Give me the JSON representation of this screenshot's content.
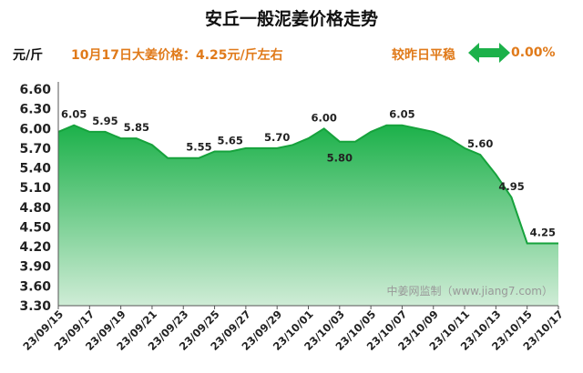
{
  "title": "安丘一般泥姜价格走势",
  "unit": "元/斤",
  "price_note": "10月17日大姜价格：4.25元/斤左右",
  "compare_label": "较昨日平稳",
  "change": "0.00%",
  "watermark": "中姜网监制（www.jiang7.com）",
  "colors": {
    "fill_top": "#1cb14a",
    "fill_bottom": "#cfecd6",
    "line": "#16a23c",
    "accent": "#e07a1a",
    "arrow": "#1cb14a"
  },
  "icons": {
    "compare": "double-arrow-icon"
  },
  "chart_data": {
    "type": "area",
    "title": "安丘一般泥姜价格走势",
    "ylabel": "元/斤",
    "xlabel": "",
    "ylim": [
      3.3,
      6.6
    ],
    "yticks": [
      "6.60",
      "6.30",
      "6.00",
      "5.70",
      "5.40",
      "5.10",
      "4.80",
      "4.50",
      "4.20",
      "3.90",
      "3.60",
      "3.30"
    ],
    "x": [
      "23/09/15",
      "23/09/16",
      "23/09/17",
      "23/09/18",
      "23/09/19",
      "23/09/20",
      "23/09/21",
      "23/09/22",
      "23/09/23",
      "23/09/24",
      "23/09/25",
      "23/09/26",
      "23/09/27",
      "23/09/28",
      "23/09/29",
      "23/09/30",
      "23/10/01",
      "23/10/02",
      "23/10/03",
      "23/10/04",
      "23/10/05",
      "23/10/06",
      "23/10/07",
      "23/10/08",
      "23/10/09",
      "23/10/10",
      "23/10/11",
      "23/10/12",
      "23/10/13",
      "23/10/14",
      "23/10/15",
      "23/10/16",
      "23/10/17"
    ],
    "x_tick_labels": [
      "23/09/15",
      "23/09/17",
      "23/09/19",
      "23/09/21",
      "23/09/23",
      "23/09/25",
      "23/09/27",
      "23/09/29",
      "23/10/01",
      "23/10/03",
      "23/10/05",
      "23/10/07",
      "23/10/09",
      "23/10/11",
      "23/10/13",
      "23/10/15",
      "23/10/17"
    ],
    "values": [
      5.95,
      6.05,
      5.95,
      5.95,
      5.85,
      5.85,
      5.75,
      5.55,
      5.55,
      5.55,
      5.65,
      5.65,
      5.7,
      5.7,
      5.7,
      5.75,
      5.85,
      6.0,
      5.8,
      5.8,
      5.95,
      6.05,
      6.05,
      6.0,
      5.95,
      5.85,
      5.7,
      5.6,
      5.3,
      4.95,
      4.25,
      4.25,
      4.25
    ],
    "data_labels": [
      {
        "x": "23/09/16",
        "text": "6.05"
      },
      {
        "x": "23/09/18",
        "text": "5.95"
      },
      {
        "x": "23/09/20",
        "text": "5.85"
      },
      {
        "x": "23/09/24",
        "text": "5.55"
      },
      {
        "x": "23/09/26",
        "text": "5.65"
      },
      {
        "x": "23/09/29",
        "text": "5.70"
      },
      {
        "x": "23/10/02",
        "text": "6.00"
      },
      {
        "x": "23/10/03",
        "text": "5.80"
      },
      {
        "x": "23/10/07",
        "text": "6.05"
      },
      {
        "x": "23/10/12",
        "text": "5.60"
      },
      {
        "x": "23/10/14",
        "text": "4.95"
      },
      {
        "x": "23/10/16",
        "text": "4.25"
      }
    ],
    "grid": false,
    "legend": "none"
  }
}
